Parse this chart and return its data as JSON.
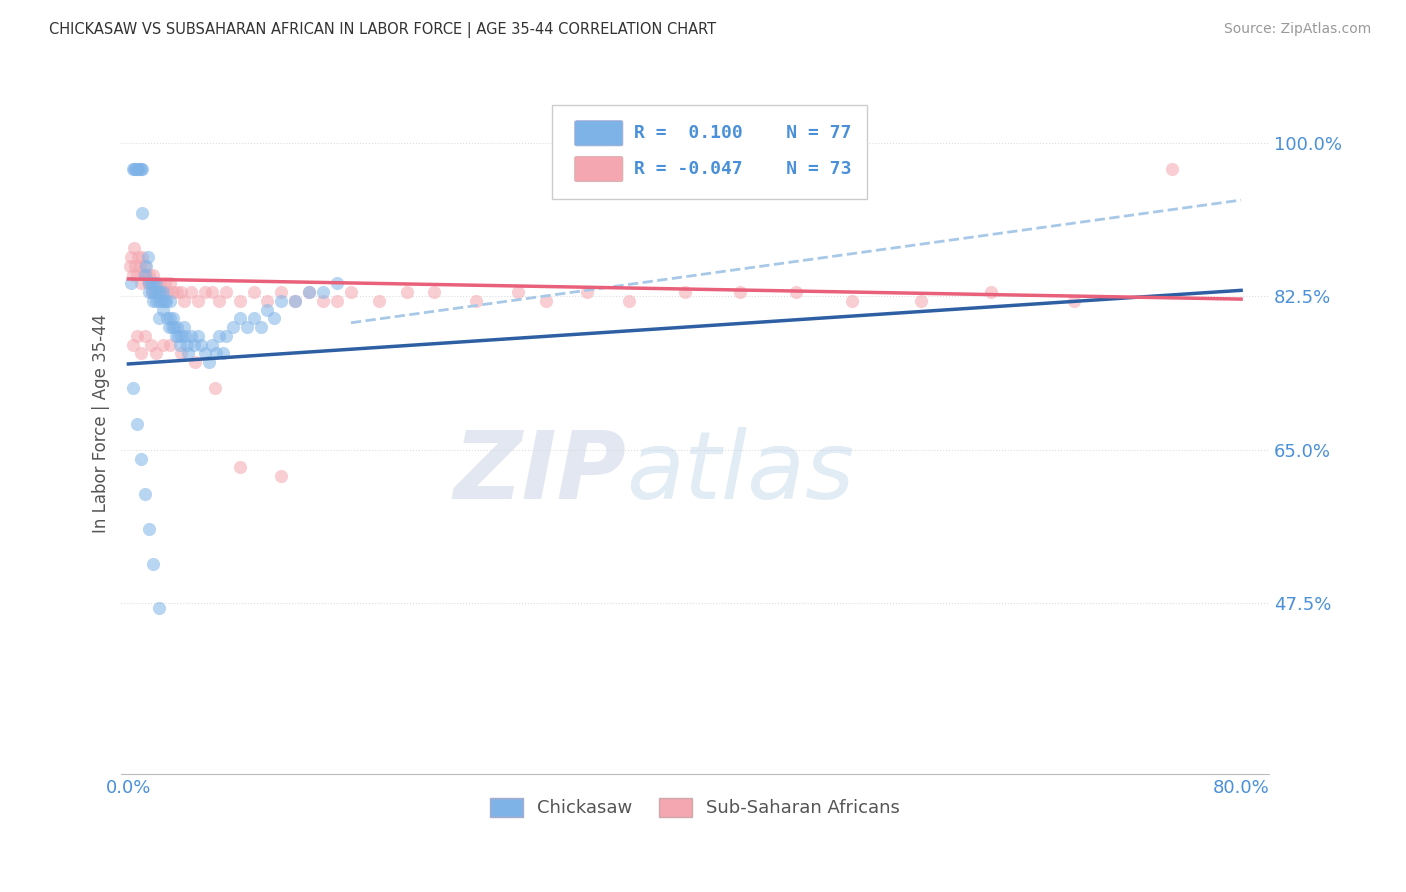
{
  "title": "CHICKASAW VS SUBSAHARAN AFRICAN IN LABOR FORCE | AGE 35-44 CORRELATION CHART",
  "source": "Source: ZipAtlas.com",
  "ylabel": "In Labor Force | Age 35-44",
  "ylabel_right_ticks": [
    0.475,
    0.65,
    0.825,
    1.0
  ],
  "ylabel_right_labels": [
    "47.5%",
    "65.0%",
    "82.5%",
    "100.0%"
  ],
  "xlabel_ticks": [
    0.0,
    0.1,
    0.2,
    0.3,
    0.4,
    0.5,
    0.6,
    0.7,
    0.8
  ],
  "xlabel_labels": [
    "0.0%",
    "",
    "",
    "",
    "",
    "",
    "",
    "",
    "80.0%"
  ],
  "xlim": [
    -0.005,
    0.82
  ],
  "ylim": [
    0.28,
    1.08
  ],
  "color_chickasaw": "#7EB3E8",
  "color_subsaharan": "#F4A7B0",
  "color_trend_chickasaw": "#2E5FA3",
  "color_trend_subsaharan": "#E8607A",
  "color_dashed": "#A8C8E8",
  "color_title": "#333333",
  "color_axis_labels": "#4A90D9",
  "color_source": "#999999",
  "color_grid": "#DDDDDD",
  "watermark_zip": "ZIP",
  "watermark_atlas": "atlas",
  "marker_size": 90,
  "alpha_scatter": 0.55,
  "chickasaw_x": [
    0.002,
    0.003,
    0.004,
    0.005,
    0.006,
    0.007,
    0.008,
    0.009,
    0.01,
    0.01,
    0.012,
    0.013,
    0.014,
    0.015,
    0.015,
    0.016,
    0.017,
    0.018,
    0.018,
    0.019,
    0.02,
    0.02,
    0.021,
    0.022,
    0.022,
    0.023,
    0.024,
    0.025,
    0.025,
    0.026,
    0.027,
    0.028,
    0.029,
    0.03,
    0.03,
    0.031,
    0.032,
    0.033,
    0.034,
    0.035,
    0.036,
    0.037,
    0.038,
    0.04,
    0.041,
    0.042,
    0.043,
    0.045,
    0.047,
    0.05,
    0.052,
    0.055,
    0.058,
    0.06,
    0.063,
    0.065,
    0.068,
    0.07,
    0.075,
    0.08,
    0.085,
    0.09,
    0.095,
    0.1,
    0.105,
    0.11,
    0.12,
    0.13,
    0.14,
    0.15,
    0.003,
    0.006,
    0.009,
    0.012,
    0.015,
    0.018,
    0.022
  ],
  "chickasaw_y": [
    0.84,
    0.97,
    0.97,
    0.97,
    0.97,
    0.97,
    0.97,
    0.97,
    0.97,
    0.92,
    0.85,
    0.86,
    0.87,
    0.84,
    0.83,
    0.84,
    0.83,
    0.84,
    0.82,
    0.83,
    0.84,
    0.82,
    0.83,
    0.82,
    0.8,
    0.83,
    0.82,
    0.83,
    0.81,
    0.82,
    0.82,
    0.8,
    0.79,
    0.82,
    0.8,
    0.79,
    0.8,
    0.79,
    0.78,
    0.79,
    0.78,
    0.77,
    0.78,
    0.79,
    0.78,
    0.77,
    0.76,
    0.78,
    0.77,
    0.78,
    0.77,
    0.76,
    0.75,
    0.77,
    0.76,
    0.78,
    0.76,
    0.78,
    0.79,
    0.8,
    0.79,
    0.8,
    0.79,
    0.81,
    0.8,
    0.82,
    0.82,
    0.83,
    0.83,
    0.84,
    0.72,
    0.68,
    0.64,
    0.6,
    0.56,
    0.52,
    0.47
  ],
  "subsaharan_x": [
    0.001,
    0.002,
    0.003,
    0.004,
    0.005,
    0.006,
    0.007,
    0.008,
    0.009,
    0.01,
    0.011,
    0.012,
    0.013,
    0.014,
    0.015,
    0.016,
    0.017,
    0.018,
    0.019,
    0.02,
    0.022,
    0.024,
    0.026,
    0.028,
    0.03,
    0.032,
    0.035,
    0.038,
    0.04,
    0.045,
    0.05,
    0.055,
    0.06,
    0.065,
    0.07,
    0.08,
    0.09,
    0.1,
    0.11,
    0.12,
    0.13,
    0.14,
    0.15,
    0.16,
    0.18,
    0.2,
    0.22,
    0.25,
    0.28,
    0.3,
    0.33,
    0.36,
    0.4,
    0.44,
    0.48,
    0.52,
    0.57,
    0.62,
    0.68,
    0.75,
    0.003,
    0.006,
    0.009,
    0.012,
    0.016,
    0.02,
    0.025,
    0.03,
    0.038,
    0.048,
    0.062,
    0.08,
    0.11
  ],
  "subsaharan_y": [
    0.86,
    0.87,
    0.85,
    0.88,
    0.86,
    0.85,
    0.87,
    0.86,
    0.84,
    0.87,
    0.85,
    0.86,
    0.85,
    0.84,
    0.85,
    0.84,
    0.83,
    0.85,
    0.84,
    0.83,
    0.84,
    0.83,
    0.84,
    0.83,
    0.84,
    0.83,
    0.83,
    0.83,
    0.82,
    0.83,
    0.82,
    0.83,
    0.83,
    0.82,
    0.83,
    0.82,
    0.83,
    0.82,
    0.83,
    0.82,
    0.83,
    0.82,
    0.82,
    0.83,
    0.82,
    0.83,
    0.83,
    0.82,
    0.83,
    0.82,
    0.83,
    0.82,
    0.83,
    0.83,
    0.83,
    0.82,
    0.82,
    0.83,
    0.82,
    0.97,
    0.77,
    0.78,
    0.76,
    0.78,
    0.77,
    0.76,
    0.77,
    0.77,
    0.76,
    0.75,
    0.72,
    0.63,
    0.62
  ],
  "chickasaw_trend": [
    0.0,
    0.8,
    0.748,
    0.832
  ],
  "subsaharan_trend": [
    0.0,
    0.8,
    0.845,
    0.822
  ],
  "dashed_line": [
    0.16,
    0.8,
    0.795,
    0.935
  ]
}
